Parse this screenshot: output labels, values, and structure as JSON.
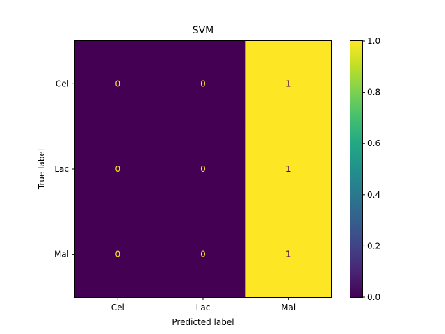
{
  "chart_data": {
    "type": "heatmap",
    "title": "SVM",
    "xlabel": "Predicted label",
    "ylabel": "True label",
    "x_categories": [
      "Cel",
      "Lac",
      "Mal"
    ],
    "y_categories": [
      "Cel",
      "Lac",
      "Mal"
    ],
    "values": [
      [
        0,
        0,
        1
      ],
      [
        0,
        0,
        1
      ],
      [
        0,
        0,
        1
      ]
    ],
    "value_labels": [
      [
        "0",
        "0",
        "1"
      ],
      [
        "0",
        "0",
        "1"
      ],
      [
        "0",
        "0",
        "1"
      ]
    ],
    "colormap": "viridis",
    "color_low": "#440154",
    "color_high": "#fde725",
    "text_on_low": "#fde725",
    "text_on_high": "#440154",
    "vmin": 0,
    "vmax": 1,
    "colorbar_ticks": [
      "0.0",
      "0.2",
      "0.4",
      "0.6",
      "0.8",
      "1.0"
    ],
    "grid": false
  }
}
